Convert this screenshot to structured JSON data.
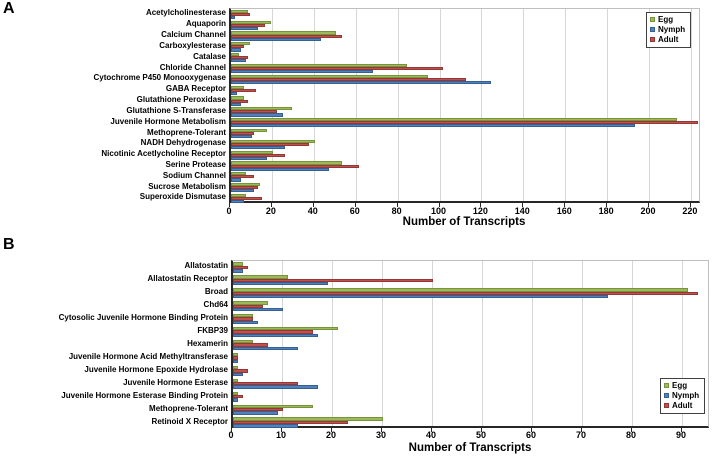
{
  "panel_letters": [
    "A",
    "B"
  ],
  "legend_labels": [
    "Egg",
    "Nymph",
    "Adult"
  ],
  "series_colors": {
    "Egg": "#9BBB59",
    "Nymph": "#4F81BD",
    "Adult": "#C0504D"
  },
  "series_border_colors": {
    "Egg": "#77933C",
    "Nymph": "#366092",
    "Adult": "#953734"
  },
  "chart_data": [
    {
      "type": "bar",
      "orientation": "horizontal",
      "panel": "A",
      "xlabel": "Number of Transcripts",
      "xlim": [
        0,
        224.8
      ],
      "xticks": [
        0,
        20,
        40,
        60,
        80,
        100,
        120,
        140,
        160,
        180,
        200,
        220
      ],
      "grid": true,
      "legend_position": "top-right",
      "visual_row_order": [
        "Egg",
        "Adult",
        "Nymph"
      ],
      "categories": [
        "Acetylcholinesterase",
        "Aquaporin",
        "Calcium Channel",
        "Carboxylesterase",
        "Catalase",
        "Chloride Channel",
        "Cytochrome P450 Monooxygenase",
        "GABA Receptor",
        "Glutathione Peroxidase",
        "Glutathione S-Transferase",
        "Juvenile Hormone Metabolism",
        "Methoprene-Tolerant",
        "NADH Dehydrogenase",
        "Nicotinic Acetlycholine Receptor",
        "Serine Protease",
        "Sodium Channel",
        "Sucrose Metabolism",
        "Superoxide Dismutase"
      ],
      "series": [
        {
          "name": "Egg",
          "values": [
            8,
            19,
            50,
            9,
            4,
            84,
            94,
            6,
            6,
            29,
            213,
            17,
            40,
            20,
            53,
            7,
            14,
            7
          ]
        },
        {
          "name": "Nymph",
          "values": [
            2,
            13,
            43,
            5,
            7,
            68,
            124,
            3,
            5,
            25,
            193,
            10,
            26,
            17,
            47,
            5,
            11,
            6
          ]
        },
        {
          "name": "Adult",
          "values": [
            9,
            16,
            53,
            6,
            8,
            101,
            112,
            12,
            8,
            22,
            223,
            11,
            37,
            26,
            61,
            11,
            13,
            15
          ]
        }
      ]
    },
    {
      "type": "bar",
      "orientation": "horizontal",
      "panel": "B",
      "xlabel": "Number of Transcripts",
      "xlim": [
        0,
        95.6
      ],
      "xticks": [
        0,
        10,
        20,
        30,
        40,
        50,
        60,
        70,
        80,
        90
      ],
      "grid": true,
      "legend_position": "right-middle",
      "visual_row_order": [
        "Egg",
        "Adult",
        "Nymph"
      ],
      "categories": [
        "Allatostatin",
        "Allatostatin Receptor",
        "Broad",
        "Chd64",
        "Cytosolic Juvenile Hormone Binding Protein",
        "FKBP39",
        "Hexamerin",
        "Juvenile Hormone Acid Methyltransferase",
        "Juvenile Hormone Epoxide Hydrolase",
        "Juvenile Hormone Esterase",
        "Juvenile Hormone Esterase Binding Protein",
        "Methoprene-Tolerant",
        "Retinoid X Receptor"
      ],
      "series": [
        {
          "name": "Egg",
          "values": [
            2,
            11,
            91,
            7,
            4,
            21,
            4,
            1,
            1,
            1,
            1,
            16,
            30
          ]
        },
        {
          "name": "Nymph",
          "values": [
            2,
            19,
            75,
            10,
            5,
            17,
            13,
            1,
            2,
            17,
            1,
            9,
            13
          ]
        },
        {
          "name": "Adult",
          "values": [
            3,
            40,
            93,
            6,
            4,
            16,
            7,
            1,
            3,
            13,
            2,
            10,
            23
          ]
        }
      ]
    }
  ]
}
